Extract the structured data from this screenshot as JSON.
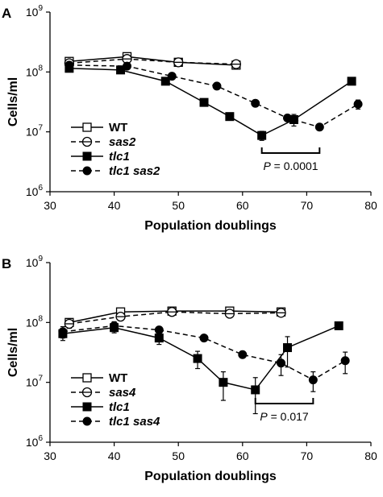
{
  "chart_data": [
    {
      "type": "line",
      "panel_label": "A",
      "xlabel": "Population doublings",
      "ylabel": "Cells/ml",
      "xlim": [
        30,
        80
      ],
      "x_ticks": [
        30,
        40,
        50,
        60,
        70,
        80
      ],
      "ylim": [
        1000000,
        1000000000
      ],
      "y_scale": "log",
      "y_ticks": [
        {
          "base": "10",
          "exp": "6"
        },
        {
          "base": "10",
          "exp": "7"
        },
        {
          "base": "10",
          "exp": "8"
        },
        {
          "base": "10",
          "exp": "9"
        }
      ],
      "grid": false,
      "legend_position": "bottom-left",
      "series": [
        {
          "name": "WT",
          "italic": false,
          "marker": "square-open",
          "line": "solid",
          "x": [
            33,
            42,
            50,
            59
          ],
          "y": [
            150000000,
            180000000,
            145000000,
            130000000
          ],
          "err": [
            0,
            0,
            0,
            0
          ]
        },
        {
          "name": "sas2",
          "italic": true,
          "marker": "circle-open-bar",
          "line": "dashed",
          "x": [
            33,
            42,
            50,
            59
          ],
          "y": [
            140000000,
            165000000,
            145000000,
            135000000
          ],
          "err": [
            0,
            0,
            0,
            0
          ]
        },
        {
          "name": "tlc1",
          "italic": true,
          "marker": "square-filled",
          "line": "solid",
          "x": [
            33,
            41,
            48,
            54,
            58,
            63,
            68,
            77
          ],
          "y": [
            115000000,
            108000000,
            70000000,
            31000000,
            18000000,
            8700000,
            16000000,
            70000000
          ],
          "err": [
            0,
            0,
            0,
            0,
            0,
            1500000,
            3500000,
            0
          ]
        },
        {
          "name": "tlc1 sas2",
          "italic": true,
          "marker": "circle-filled",
          "line": "dashed",
          "x": [
            33,
            42,
            49,
            56,
            62,
            67,
            72,
            78
          ],
          "y": [
            130000000,
            125000000,
            85000000,
            58000000,
            30000000,
            17000000,
            12000000,
            29000000
          ],
          "err": [
            0,
            0,
            0,
            0,
            0,
            0,
            0,
            5000000
          ]
        }
      ],
      "annotation": {
        "p_label": "P",
        "p_value": "= 0.0001",
        "x_from": 63,
        "x_to": 72
      }
    },
    {
      "type": "line",
      "panel_label": "B",
      "xlabel": "Population doublings",
      "ylabel": "Cells/ml",
      "xlim": [
        30,
        80
      ],
      "x_ticks": [
        30,
        40,
        50,
        60,
        70,
        80
      ],
      "ylim": [
        1000000,
        1000000000
      ],
      "y_scale": "log",
      "y_ticks": [
        {
          "base": "10",
          "exp": "6"
        },
        {
          "base": "10",
          "exp": "7"
        },
        {
          "base": "10",
          "exp": "8"
        },
        {
          "base": "10",
          "exp": "9"
        }
      ],
      "grid": false,
      "legend_position": "bottom-left",
      "series": [
        {
          "name": "WT",
          "italic": false,
          "marker": "square-open",
          "line": "solid",
          "x": [
            33,
            41,
            49,
            58,
            66
          ],
          "y": [
            100000000,
            150000000,
            155000000,
            155000000,
            150000000
          ],
          "err": [
            0,
            0,
            0,
            0,
            0
          ]
        },
        {
          "name": "sas4",
          "italic": true,
          "marker": "circle-open-bar",
          "line": "dashed",
          "x": [
            33,
            41,
            49,
            58,
            66
          ],
          "y": [
            95000000,
            125000000,
            150000000,
            140000000,
            145000000
          ],
          "err": [
            15000000,
            15000000,
            0,
            0,
            0
          ]
        },
        {
          "name": "tlc1",
          "italic": true,
          "marker": "square-filled",
          "line": "solid",
          "x": [
            32,
            40,
            47,
            53,
            57,
            62,
            67,
            75
          ],
          "y": [
            65000000,
            82000000,
            55000000,
            25000000,
            10000000,
            7500000,
            38000000,
            88000000
          ],
          "err": [
            15000000,
            15000000,
            12000000,
            8000000,
            5000000,
            4500000,
            20000000,
            0
          ]
        },
        {
          "name": "tlc1 sas4",
          "italic": true,
          "marker": "circle-filled",
          "line": "dashed",
          "x": [
            32,
            40,
            47,
            54,
            60,
            66,
            71,
            76
          ],
          "y": [
            70000000,
            88000000,
            75000000,
            55000000,
            29000000,
            21000000,
            11000000,
            23000000
          ],
          "err": [
            15000000,
            15000000,
            10000000,
            0,
            0,
            8000000,
            4000000,
            9000000
          ]
        }
      ],
      "annotation": {
        "p_label": "P",
        "p_value": "= 0.017",
        "x_from": 62,
        "x_to": 71
      }
    }
  ]
}
